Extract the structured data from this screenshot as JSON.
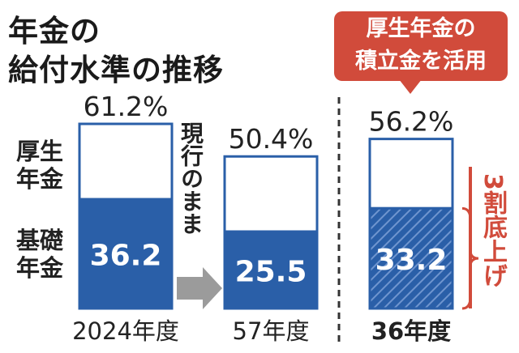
{
  "title": {
    "line1": "年金の",
    "line2": "給付水準の推移"
  },
  "callout": {
    "line1": "厚生年金の",
    "line2": "積立金を活用"
  },
  "legend": {
    "upper": {
      "line1": "厚生",
      "line2": "年金"
    },
    "lower": {
      "line1": "基礎",
      "line2": "年金"
    }
  },
  "vertical_note": "現行のまま",
  "reduction_note": "3割底上げ",
  "colors": {
    "blue": "#2a5fa8",
    "red": "#d14b3b"
  },
  "chart_data": {
    "type": "bar",
    "stacked": true,
    "categories": [
      "2024年度",
      "57年度",
      "36年度"
    ],
    "series": [
      {
        "name": "基礎年金",
        "values": [
          36.2,
          25.5,
          33.2
        ],
        "value_labels": [
          "36.2",
          "25.5",
          "33.2"
        ]
      },
      {
        "name": "厚生年金",
        "values": [
          25.0,
          24.9,
          23.0
        ]
      }
    ],
    "totals": [
      61.2,
      50.4,
      56.2
    ],
    "total_labels": [
      "61.2%",
      "50.4%",
      "56.2%"
    ],
    "hatched_categories": [
      "36年度"
    ],
    "ylim": [
      0,
      61.2
    ]
  }
}
